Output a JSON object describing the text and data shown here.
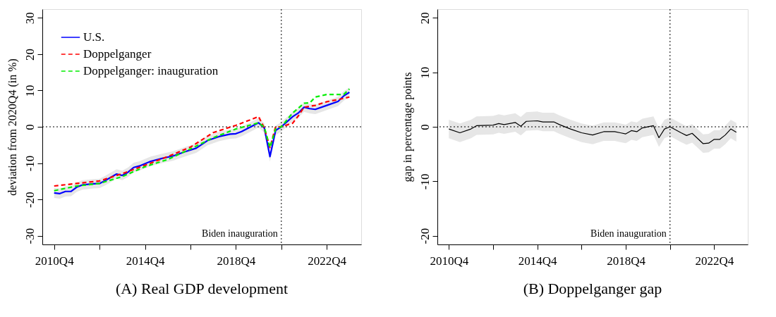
{
  "chart_data": [
    {
      "type": "line",
      "title": "(A) Real GDP development",
      "ylabel": "deviation from 2020Q4 (in %)",
      "legend": "top left",
      "xlim": [
        "2010-03-25",
        "2024-04-07"
      ],
      "ylim": [
        -32.4,
        32.4
      ],
      "yticks": [
        -30,
        -20,
        -10,
        0,
        10,
        20,
        30
      ],
      "xticks": [
        {
          "value": "2010-10",
          "label": "2010Q4"
        },
        {
          "value": "2012-10",
          "label": null
        },
        {
          "value": "2014-10",
          "label": "2014Q4"
        },
        {
          "value": "2016-10",
          "label": null
        },
        {
          "value": "2018-10",
          "label": "2018Q4"
        },
        {
          "value": "2020-10",
          "label": null
        },
        {
          "value": "2022-10",
          "label": "2022Q4"
        }
      ],
      "ref_lines": [
        {
          "axis": "y",
          "value": 0,
          "line_style": "dotted"
        },
        {
          "axis": "x",
          "value": "2020-10",
          "label": "Biden inauguration",
          "line_style": "dotted"
        }
      ],
      "series": [
        {
          "name": "U.S.",
          "color": "#0000ff",
          "line_style": "solid",
          "x": [
            "2010-10",
            "2011-01",
            "2011-04",
            "2011-07",
            "2011-10",
            "2012-01",
            "2012-07",
            "2012-10",
            "2013-01",
            "2013-07",
            "2013-10",
            "2014-01",
            "2014-04",
            "2014-07",
            "2015-01",
            "2015-07",
            "2016-01",
            "2016-07",
            "2017-01",
            "2017-07",
            "2018-01",
            "2018-07",
            "2018-10",
            "2019-01",
            "2019-07",
            "2019-10",
            "2020-01",
            "2020-04",
            "2020-07",
            "2020-10",
            "2021-04",
            "2021-07",
            "2021-10",
            "2022-01",
            "2022-04",
            "2022-10",
            "2023-04",
            "2023-07",
            "2023-10"
          ],
          "values": [
            -18.2,
            -18.4,
            -17.8,
            -17.8,
            -16.6,
            -16.0,
            -15.7,
            -15.6,
            -14.8,
            -13.0,
            -13.4,
            -12.5,
            -11.2,
            -10.8,
            -9.5,
            -8.7,
            -8.0,
            -6.9,
            -5.9,
            -3.8,
            -2.7,
            -2.0,
            -1.9,
            -1.3,
            0.3,
            1.1,
            -0.3,
            -8.2,
            -1.0,
            0,
            2.8,
            3.8,
            5.4,
            5.0,
            4.8,
            5.9,
            7.0,
            8.5,
            9.5
          ],
          "lower": [
            -19.6,
            -19.8,
            -19.2,
            -19.1,
            -17.9,
            -17.3,
            -17.0,
            -16.9,
            -16.1,
            -14.3,
            -14.7,
            -13.8,
            -12.5,
            -12.1,
            -10.8,
            -10.0,
            -9.3,
            -8.2,
            -7.2,
            -5.1,
            -4.0,
            -3.3,
            -3.2,
            -2.6,
            -1.0,
            -0.2,
            -1.6,
            -9.6,
            -2.3,
            -1.3,
            1.5,
            2.5,
            4.1,
            3.7,
            3.5,
            4.6,
            5.7,
            7.2,
            8.2
          ],
          "upper": [
            -16.8,
            -17.0,
            -16.4,
            -16.5,
            -15.3,
            -14.7,
            -14.4,
            -14.3,
            -13.5,
            -11.7,
            -12.1,
            -11.2,
            -9.9,
            -9.5,
            -8.2,
            -7.4,
            -6.7,
            -5.6,
            -4.6,
            -2.5,
            -1.4,
            -0.7,
            -0.6,
            0.0,
            1.6,
            2.4,
            1.0,
            -6.8,
            0.3,
            1.3,
            4.1,
            5.1,
            6.7,
            6.3,
            6.1,
            7.2,
            8.3,
            9.8,
            10.8
          ]
        },
        {
          "name": "Doppelganger",
          "color": "#ff0000",
          "line_style": "dashed",
          "x": [
            "2010-10",
            "2011-10",
            "2012-10",
            "2013-10",
            "2014-10",
            "2015-10",
            "2016-10",
            "2017-10",
            "2018-10",
            "2019-10",
            "2020-01",
            "2020-04",
            "2020-07",
            "2020-10",
            "2021-04",
            "2021-07",
            "2021-10",
            "2022-04",
            "2022-10",
            "2023-04",
            "2023-10"
          ],
          "values": [
            -16.3,
            -15.6,
            -14.9,
            -12.9,
            -10.6,
            -8.2,
            -5.6,
            -1.6,
            0.4,
            2.8,
            -0.3,
            -5.7,
            0,
            0,
            1.0,
            3.0,
            5.4,
            5.9,
            6.9,
            7.5,
            8.2
          ]
        },
        {
          "name": "Doppelganger: inauguration",
          "color": "#00ee00",
          "line_style": "dashed",
          "x": [
            "2010-10",
            "2011-10",
            "2012-10",
            "2013-10",
            "2014-10",
            "2015-10",
            "2016-10",
            "2017-10",
            "2018-10",
            "2019-10",
            "2020-01",
            "2020-04",
            "2020-07",
            "2020-10",
            "2021-04",
            "2021-10",
            "2022-01",
            "2022-04",
            "2022-10",
            "2023-04",
            "2023-07",
            "2023-10"
          ],
          "values": [
            -17.6,
            -16.3,
            -15.6,
            -13.7,
            -11.0,
            -9.0,
            -6.1,
            -3.0,
            -0.6,
            1.1,
            -0.1,
            -5.7,
            -0.6,
            0,
            3.8,
            6.5,
            6.6,
            8.2,
            8.9,
            8.9,
            8.9,
            10.4
          ]
        }
      ]
    },
    {
      "type": "line",
      "title": "(B) Doppelganger gap",
      "ylabel": "gap in percentage points",
      "xlim": [
        "2010-03-25",
        "2024-04-07"
      ],
      "ylim": [
        -21.6,
        21.6
      ],
      "yticks": [
        -20,
        -10,
        0,
        10,
        20
      ],
      "xticks": [
        {
          "value": "2010-10",
          "label": "2010Q4"
        },
        {
          "value": "2012-10",
          "label": null
        },
        {
          "value": "2014-10",
          "label": "2014Q4"
        },
        {
          "value": "2016-10",
          "label": null
        },
        {
          "value": "2018-10",
          "label": "2018Q4"
        },
        {
          "value": "2020-10",
          "label": null
        },
        {
          "value": "2022-10",
          "label": "2022Q4"
        }
      ],
      "ref_lines": [
        {
          "axis": "y",
          "value": 0,
          "line_style": "dotted"
        },
        {
          "axis": "x",
          "value": "2020-10",
          "label": "Biden inauguration",
          "line_style": "dotted"
        }
      ],
      "series": [
        {
          "color": "#000000",
          "line_style": "solid",
          "x": [
            "2010-10",
            "2011-04",
            "2011-10",
            "2012-01",
            "2012-10",
            "2013-01",
            "2013-04",
            "2013-10",
            "2014-01",
            "2014-04",
            "2014-10",
            "2015-01",
            "2015-07",
            "2015-10",
            "2016-04",
            "2016-10",
            "2017-04",
            "2017-10",
            "2018-04",
            "2018-07",
            "2018-10",
            "2019-01",
            "2019-04",
            "2019-07",
            "2020-01",
            "2020-04",
            "2020-07",
            "2020-10",
            "2021-04",
            "2021-07",
            "2021-10",
            "2022-04",
            "2022-07",
            "2022-10",
            "2023-01",
            "2023-04",
            "2023-07",
            "2023-10"
          ],
          "values": [
            -0.4,
            -1.1,
            -0.4,
            0.2,
            0.3,
            0.6,
            0.4,
            0.8,
            0.1,
            1.0,
            1.1,
            0.9,
            0.9,
            0.4,
            -0.4,
            -1.1,
            -1.5,
            -0.9,
            -0.9,
            -1.1,
            -1.3,
            -0.7,
            -0.9,
            -0.2,
            0.2,
            -2.0,
            -0.4,
            0,
            -1.1,
            -1.6,
            -1.2,
            -3.1,
            -3.0,
            -2.3,
            -2.3,
            -1.5,
            -0.4,
            -1.0
          ],
          "lower": [
            -2.1,
            -2.8,
            -2.1,
            -1.5,
            -1.4,
            -1.1,
            -1.3,
            -0.9,
            -1.6,
            -0.7,
            -0.6,
            -0.8,
            -0.8,
            -1.3,
            -2.1,
            -2.8,
            -3.2,
            -2.6,
            -2.6,
            -2.8,
            -3.0,
            -2.4,
            -2.6,
            -1.9,
            -1.5,
            -3.7,
            -2.1,
            -1.7,
            -2.8,
            -3.3,
            -2.9,
            -4.8,
            -4.7,
            -4.0,
            -4.0,
            -3.2,
            -2.1,
            -2.7
          ],
          "upper": [
            1.3,
            0.6,
            1.3,
            1.9,
            2.0,
            2.3,
            2.1,
            2.5,
            1.8,
            2.7,
            2.8,
            2.6,
            2.6,
            2.1,
            1.3,
            0.6,
            0.2,
            0.8,
            0.8,
            0.6,
            0.4,
            1.0,
            0.8,
            1.5,
            1.9,
            -0.3,
            1.3,
            1.7,
            0.6,
            0.1,
            0.5,
            -1.4,
            -1.3,
            -0.6,
            -0.6,
            0.2,
            1.3,
            0.7
          ]
        }
      ]
    }
  ]
}
